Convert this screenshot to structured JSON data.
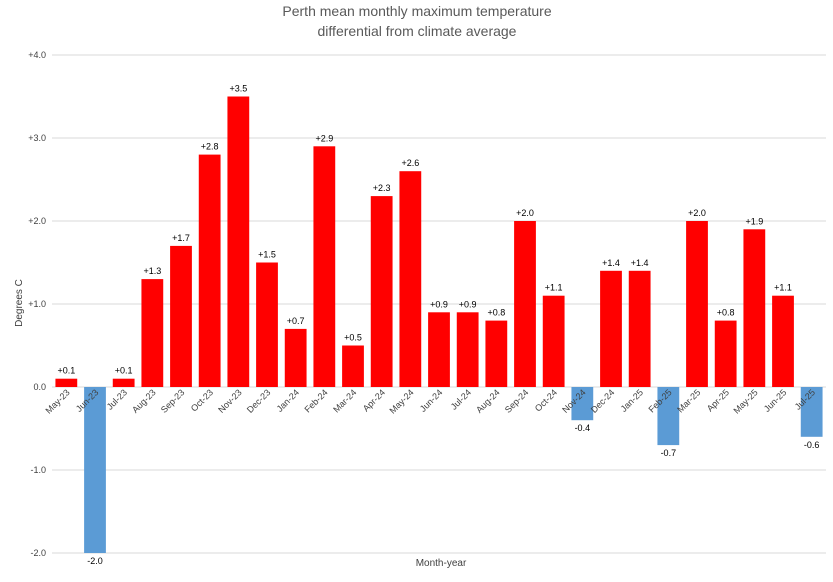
{
  "chart_data": {
    "type": "bar",
    "title": "Perth mean monthly maximum temperature differential from climate average",
    "title_lines": [
      "Perth mean monthly maximum temperature",
      "differential from climate average"
    ],
    "xlabel": "Month-year",
    "ylabel": "Degrees C",
    "ylim": [
      -2.0,
      4.0
    ],
    "yticks": [
      -2.0,
      -1.0,
      0.0,
      1.0,
      2.0,
      3.0,
      4.0
    ],
    "ytick_labels": [
      "-2.0",
      "-1.0",
      "0.0",
      "+1.0",
      "+2.0",
      "+3.0",
      "+4.0"
    ],
    "grid": true,
    "legend": "none",
    "colors": {
      "positive": "#ff0000",
      "negative": "#5b9bd5"
    },
    "categories": [
      "May-23",
      "Jun-23",
      "Jul-23",
      "Aug-23",
      "Sep-23",
      "Oct-23",
      "Nov-23",
      "Dec-23",
      "Jan-24",
      "Feb-24",
      "Mar-24",
      "Apr-24",
      "May-24",
      "Jun-24",
      "Jul-24",
      "Aug-24",
      "Sep-24",
      "Oct-24",
      "Nov-24",
      "Dec-24",
      "Jan-25",
      "Feb-25",
      "Mar-25",
      "Apr-25",
      "May-25",
      "Jun-25",
      "Jul-25"
    ],
    "values": [
      0.1,
      -2.0,
      0.1,
      1.3,
      1.7,
      2.8,
      3.5,
      1.5,
      0.7,
      2.9,
      0.5,
      2.3,
      2.6,
      0.9,
      0.9,
      0.8,
      2.0,
      1.1,
      -0.4,
      1.4,
      1.4,
      -0.7,
      2.0,
      0.8,
      1.9,
      1.1,
      -0.6
    ],
    "data_labels": [
      "+0.1",
      "-2.0",
      "+0.1",
      "+1.3",
      "+1.7",
      "+2.8",
      "+3.5",
      "+1.5",
      "+0.7",
      "+2.9",
      "+0.5",
      "+2.3",
      "+2.6",
      "+0.9",
      "+0.9",
      "+0.8",
      "+2.0",
      "+1.1",
      "-0.4",
      "+1.4",
      "+1.4",
      "-0.7",
      "+2.0",
      "+0.8",
      "+1.9",
      "+1.1",
      "-0.6"
    ]
  }
}
